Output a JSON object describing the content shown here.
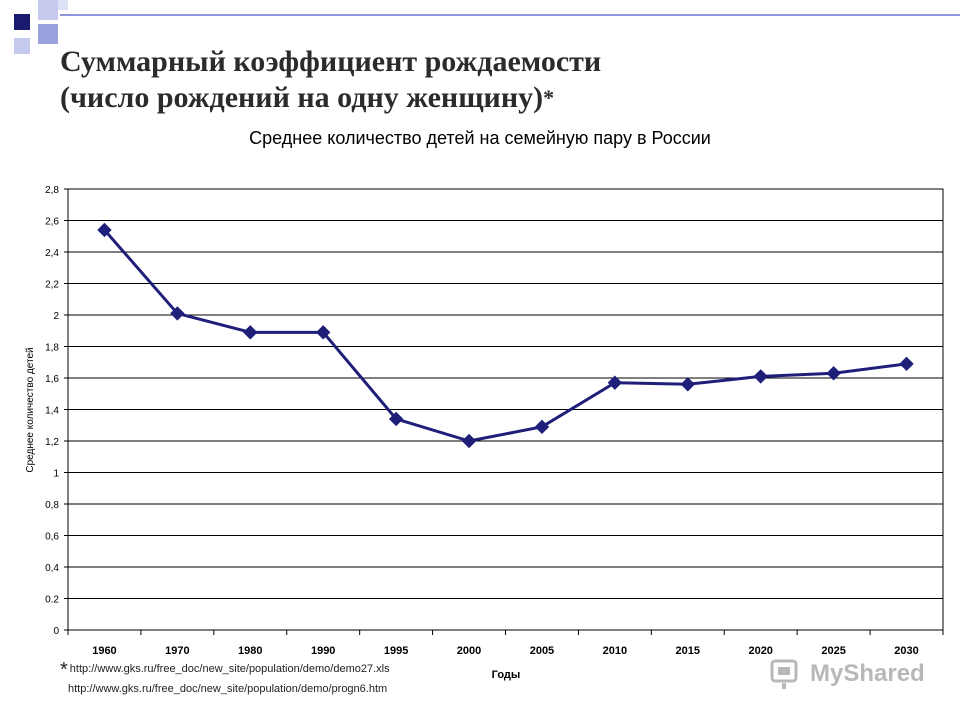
{
  "slide": {
    "title_line1": "Суммарный коэффициент рождаемости",
    "title_line2": "(число рождений на одну женщину)",
    "title_mark": "*"
  },
  "chart_data": {
    "type": "line",
    "title": "Среднее количество детей на семейную пару в России",
    "xlabel": "Годы",
    "ylabel": "Среднее количество детей",
    "categories": [
      "1960",
      "1970",
      "1980",
      "1990",
      "1995",
      "2000",
      "2005",
      "2010",
      "2015",
      "2020",
      "2025",
      "2030"
    ],
    "series": [
      {
        "values": [
          2.54,
          2.01,
          1.89,
          1.89,
          1.34,
          1.2,
          1.29,
          1.57,
          1.56,
          1.61,
          1.63,
          1.69
        ]
      }
    ],
    "ylim": [
      0,
      2.8
    ],
    "yticks": [
      "0",
      "0.2",
      "0,4",
      "0,6",
      "0,8",
      "1",
      "1,2",
      "1,4",
      "1,6",
      "1,8",
      "2",
      "2,2",
      "2,4",
      "2,6",
      "2,8"
    ],
    "grid": true,
    "line_color": "#1f1f7a"
  },
  "footnote": {
    "mark": "*",
    "url1": "http://www.gks.ru/free_doc/new_site/population/demo/demo27.xls",
    "url2": "http://www.gks.ru/free_doc/new_site/population/demo/progn6.htm"
  },
  "watermark": {
    "text": "MyShared"
  },
  "colors": {
    "corner_dark": "#1a1a6e",
    "corner_light": "#b9bde8",
    "corner_mid": "#8e95d8"
  }
}
